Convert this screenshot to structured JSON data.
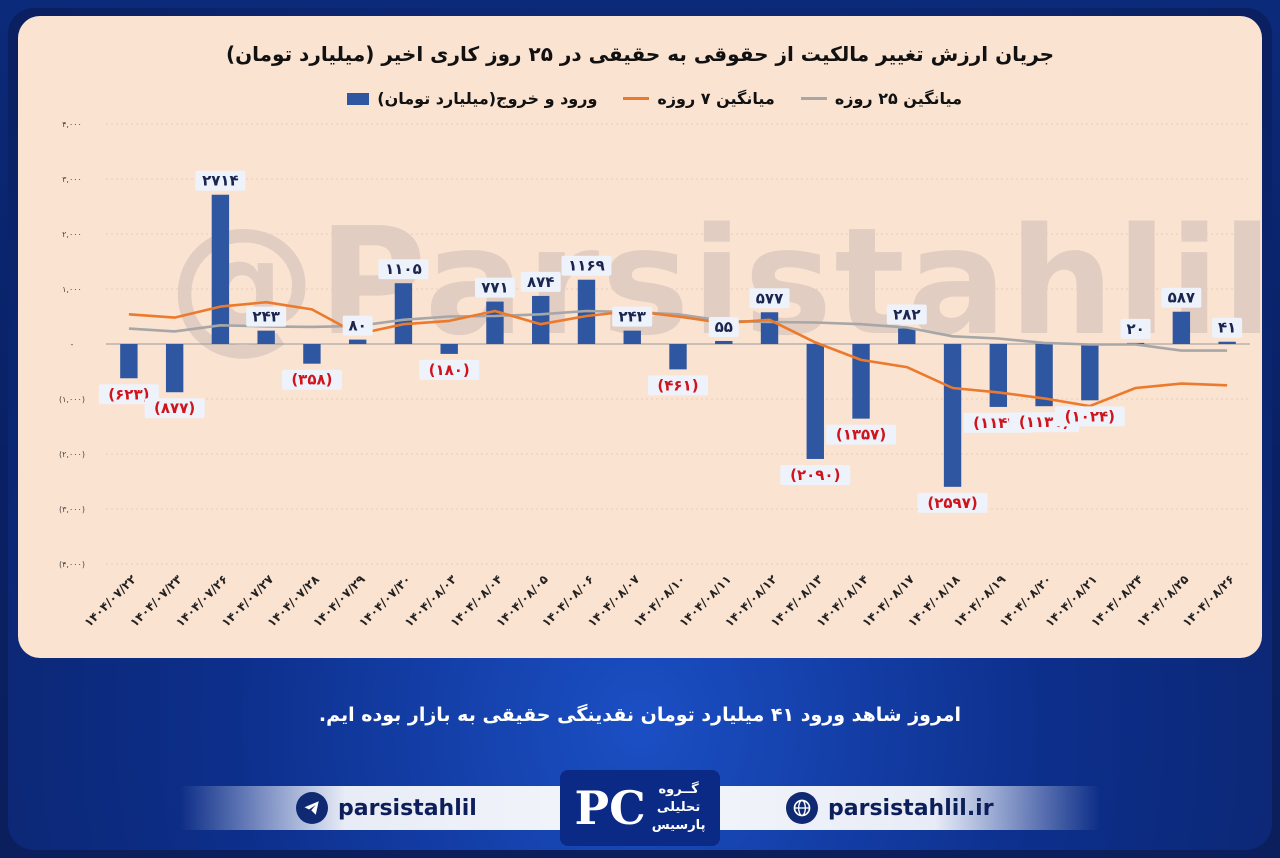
{
  "watermark": "@Parsistahlil",
  "caption": "امروز شاهد ورود ۴۱ میلیارد تومان نقدینگی حقیقی به بازار بوده ایم.",
  "footer": {
    "telegram": "parsistahlil",
    "website": "parsistahlil.ir",
    "logo_mark": "PC",
    "logo_line1": "گــروه",
    "logo_line2": "تحلیلی",
    "logo_line3": "پارسیس"
  },
  "colors": {
    "bar": "#2f56a0",
    "ma7": "#ec7a2d",
    "ma25": "#a7a7a7",
    "negative_label": "#d0141c"
  },
  "chart_data": {
    "type": "bar",
    "title": "جریان ارزش تغییر مالکیت از حقوقی به حقیقی در ۲۵ روز کاری اخیر (میلیارد تومان)",
    "legend": [
      "ورود و خروج(میلیارد تومان)",
      "میانگین ۷ روزه",
      "میانگین ۲۵ روزه"
    ],
    "legend_position": "top",
    "ylim": [
      -4000,
      4000
    ],
    "y_ticks": [
      4000,
      3000,
      2000,
      1000,
      0,
      -1000,
      -2000,
      -3000,
      -4000
    ],
    "y_tick_labels": [
      "۴,۰۰۰",
      "۳,۰۰۰",
      "۲,۰۰۰",
      "۱,۰۰۰",
      "-",
      "(۱,۰۰۰)",
      "(۲,۰۰۰)",
      "(۳,۰۰۰)",
      "(۴,۰۰۰)"
    ],
    "categories": [
      "۱۴۰۴/۰۷/۲۲",
      "۱۴۰۴/۰۷/۲۳",
      "۱۴۰۴/۰۷/۲۶",
      "۱۴۰۴/۰۷/۲۷",
      "۱۴۰۴/۰۷/۲۸",
      "۱۴۰۴/۰۷/۲۹",
      "۱۴۰۴/۰۷/۳۰",
      "۱۴۰۴/۰۸/۰۳",
      "۱۴۰۴/۰۸/۰۴",
      "۱۴۰۴/۰۸/۰۵",
      "۱۴۰۴/۰۸/۰۶",
      "۱۴۰۴/۰۸/۰۷",
      "۱۴۰۴/۰۸/۱۰",
      "۱۴۰۴/۰۸/۱۱",
      "۱۴۰۴/۰۸/۱۲",
      "۱۴۰۴/۰۸/۱۳",
      "۱۴۰۴/۰۸/۱۴",
      "۱۴۰۴/۰۸/۱۷",
      "۱۴۰۴/۰۸/۱۸",
      "۱۴۰۴/۰۸/۱۹",
      "۱۴۰۴/۰۸/۲۰",
      "۱۴۰۴/۰۸/۲۱",
      "۱۴۰۴/۰۸/۲۴",
      "۱۴۰۴/۰۸/۲۵",
      "۱۴۰۴/۰۸/۲۶"
    ],
    "series": [
      {
        "name": "ورود و خروج(میلیارد تومان)",
        "type": "bar",
        "values": [
          -623,
          -877,
          2714,
          243,
          -358,
          80,
          1105,
          -180,
          771,
          874,
          1169,
          243,
          -461,
          55,
          577,
          -2090,
          -1357,
          282,
          -2597,
          -1144,
          -1131,
          -1024,
          20,
          587,
          41
        ],
        "labels": [
          "(۶۲۳)",
          "(۸۷۷)",
          "۲۷۱۴",
          "۲۴۳",
          "(۳۵۸)",
          "۸۰",
          "۱۱۰۵",
          "(۱۸۰)",
          "۷۷۱",
          "۸۷۴",
          "۱۱۶۹",
          "۲۴۳",
          "(۴۶۱)",
          "۵۵",
          "۵۷۷",
          "(۲۰۹۰)",
          "(۱۳۵۷)",
          "۲۸۲",
          "(۲۵۹۷)",
          "(۱۱۴۴)",
          "(۱۱۳۱)",
          "(۱۰۲۴)",
          "۲۰",
          "۵۸۷",
          "۴۱"
        ]
      },
      {
        "name": "میانگین ۷ روزه",
        "type": "line",
        "values": [
          540,
          480,
          680,
          760,
          630,
          180,
          360,
          420,
          600,
          360,
          510,
          600,
          500,
          380,
          440,
          30,
          -290,
          -420,
          -800,
          -880,
          -990,
          -1130,
          -800,
          -720,
          -750
        ]
      },
      {
        "name": "میانگین ۲۵ روزه",
        "type": "line",
        "values": [
          280,
          230,
          340,
          320,
          310,
          330,
          440,
          500,
          510,
          540,
          600,
          580,
          540,
          420,
          400,
          390,
          360,
          300,
          140,
          100,
          20,
          -10,
          -10,
          -120,
          -120
        ]
      }
    ]
  }
}
